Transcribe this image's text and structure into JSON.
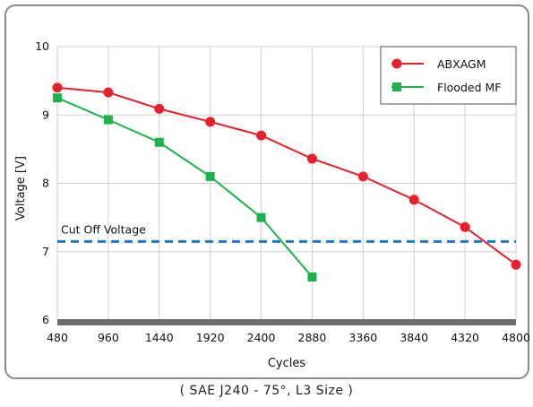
{
  "chart_data": {
    "type": "line",
    "xlabel": "Cycles",
    "ylabel": "Voltage [V]",
    "x_ticks": [
      480,
      960,
      1440,
      1920,
      2400,
      2880,
      3360,
      3840,
      4320,
      4800
    ],
    "y_ticks": [
      6,
      7,
      8,
      9,
      10
    ],
    "xlim": [
      480,
      4800
    ],
    "ylim": [
      6,
      10
    ],
    "grid": true,
    "legend_position": "top-right",
    "series": [
      {
        "name": "ABXAGM",
        "color": "#e8202a",
        "marker": "circle",
        "x": [
          480,
          960,
          1440,
          1920,
          2400,
          2880,
          3360,
          3840,
          4320,
          4800
        ],
        "y": [
          9.4,
          9.33,
          9.09,
          8.9,
          8.7,
          8.36,
          8.1,
          7.76,
          7.36,
          6.81
        ]
      },
      {
        "name": "Flooded MF",
        "color": "#1db34a",
        "marker": "square",
        "x": [
          480,
          960,
          1440,
          1920,
          2400,
          2880
        ],
        "y": [
          9.25,
          8.93,
          8.6,
          8.1,
          7.5,
          6.63
        ]
      }
    ],
    "annotations": [
      {
        "text": "Cut Off Voltage",
        "y": 7.15,
        "style": "dashed",
        "color": "#1f78c8"
      }
    ]
  },
  "caption": "( SAE J240 - 75°, L3 Size )"
}
